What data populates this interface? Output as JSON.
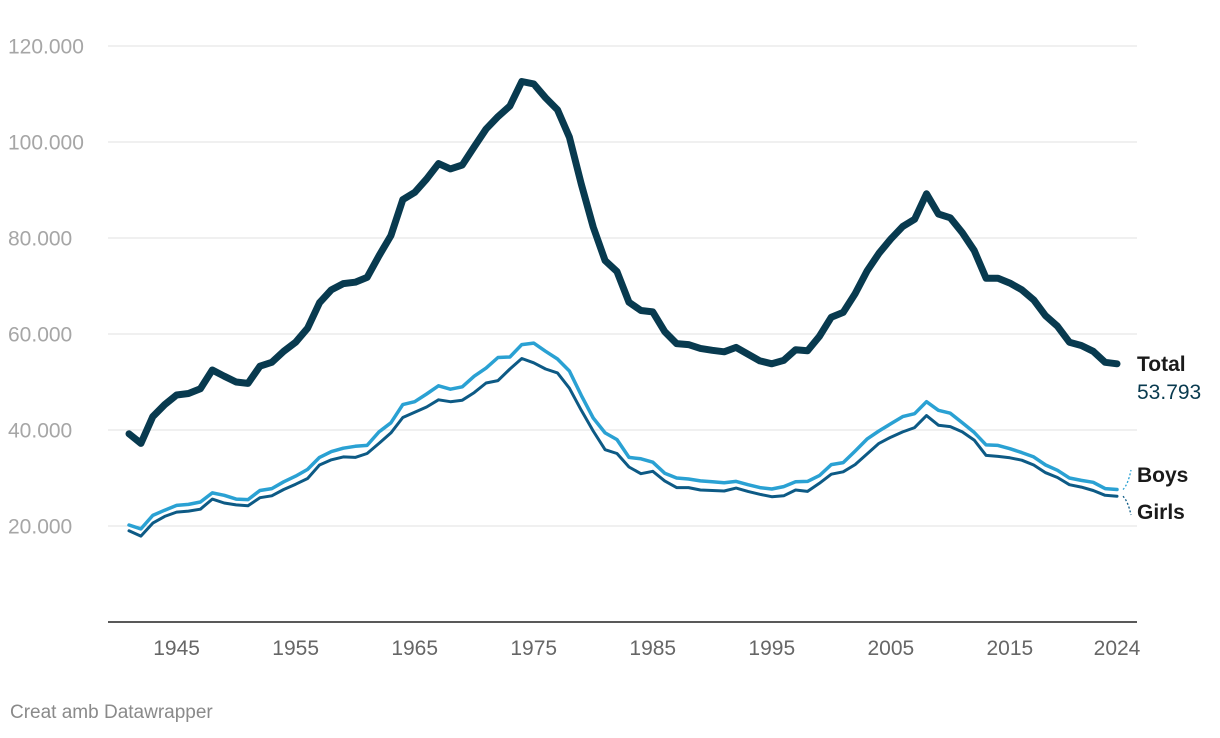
{
  "chart_data": {
    "type": "line",
    "ylim": [
      0,
      120000
    ],
    "xlim": [
      1941,
      2024
    ],
    "y_ticks": [
      {
        "value": 20000,
        "label": "20.000"
      },
      {
        "value": 40000,
        "label": "40.000"
      },
      {
        "value": 60000,
        "label": "60.000"
      },
      {
        "value": 80000,
        "label": "80.000"
      },
      {
        "value": 100000,
        "label": "100.000"
      },
      {
        "value": 120000,
        "label": "120.000"
      }
    ],
    "x_ticks": [
      {
        "value": 1945,
        "label": "1945"
      },
      {
        "value": 1955,
        "label": "1955"
      },
      {
        "value": 1965,
        "label": "1965"
      },
      {
        "value": 1975,
        "label": "1975"
      },
      {
        "value": 1985,
        "label": "1985"
      },
      {
        "value": 1995,
        "label": "1995"
      },
      {
        "value": 2005,
        "label": "2005"
      },
      {
        "value": 2015,
        "label": "2015"
      },
      {
        "value": 2024,
        "label": "2024"
      }
    ],
    "grid": true,
    "x": [
      1941,
      1942,
      1943,
      1944,
      1945,
      1946,
      1947,
      1948,
      1949,
      1950,
      1951,
      1952,
      1953,
      1954,
      1955,
      1956,
      1957,
      1958,
      1959,
      1960,
      1961,
      1962,
      1963,
      1964,
      1965,
      1966,
      1967,
      1968,
      1969,
      1970,
      1971,
      1972,
      1973,
      1974,
      1975,
      1976,
      1977,
      1978,
      1979,
      1980,
      1981,
      1982,
      1983,
      1984,
      1985,
      1986,
      1987,
      1988,
      1989,
      1990,
      1991,
      1992,
      1993,
      1994,
      1995,
      1996,
      1997,
      1998,
      1999,
      2000,
      2001,
      2002,
      2003,
      2004,
      2005,
      2006,
      2007,
      2008,
      2009,
      2010,
      2011,
      2012,
      2013,
      2014,
      2015,
      2016,
      2017,
      2018,
      2019,
      2020,
      2021,
      2022,
      2023,
      2024
    ],
    "series": [
      {
        "name": "Total",
        "color": "#083a4f",
        "end_value_label": "53.793",
        "values": [
          39200,
          37200,
          42800,
          45300,
          47300,
          47600,
          48600,
          52500,
          51200,
          50000,
          49700,
          53300,
          54100,
          56400,
          58300,
          61200,
          66500,
          69200,
          70500,
          70800,
          71800,
          76300,
          80500,
          88000,
          89500,
          92300,
          95500,
          94400,
          95200,
          99000,
          102700,
          105300,
          107500,
          112600,
          112100,
          109200,
          106700,
          101000,
          91200,
          82300,
          75300,
          73000,
          66600,
          64900,
          64600,
          60500,
          58000,
          57800,
          57000,
          56600,
          56300,
          57200,
          55800,
          54400,
          53800,
          54500,
          56700,
          56500,
          59500,
          63500,
          64500,
          68400,
          73100,
          76800,
          79800,
          82400,
          83900,
          89200,
          85000,
          84200,
          81100,
          77400,
          71600,
          71600,
          70600,
          69200,
          67100,
          63800,
          61600,
          58300,
          57600,
          56400,
          54100,
          53793
        ]
      },
      {
        "name": "Boys",
        "color": "#2aa1d3",
        "values": [
          20200,
          19400,
          22200,
          23300,
          24300,
          24500,
          25000,
          26900,
          26400,
          25600,
          25500,
          27400,
          27800,
          29200,
          30400,
          31800,
          34300,
          35500,
          36200,
          36600,
          36800,
          39600,
          41500,
          45300,
          45900,
          47500,
          49200,
          48500,
          49000,
          51200,
          52900,
          55100,
          55200,
          57800,
          58100,
          56400,
          54800,
          52300,
          47200,
          42500,
          39400,
          38000,
          34300,
          34000,
          33300,
          31000,
          30000,
          29800,
          29400,
          29200,
          29000,
          29300,
          28600,
          28000,
          27700,
          28200,
          29200,
          29300,
          30500,
          32800,
          33200,
          35600,
          38100,
          39800,
          41300,
          42800,
          43400,
          45900,
          44100,
          43500,
          41500,
          39500,
          36900,
          36800,
          36100,
          35300,
          34400,
          32700,
          31600,
          30000,
          29500,
          29100,
          27800,
          27600
        ]
      },
      {
        "name": "Girls",
        "color": "#0d5a85",
        "values": [
          19000,
          17900,
          20600,
          22000,
          22900,
          23100,
          23500,
          25600,
          24800,
          24400,
          24200,
          25900,
          26300,
          27600,
          28700,
          29900,
          32700,
          33800,
          34400,
          34300,
          35100,
          37200,
          39400,
          42600,
          43700,
          44800,
          46300,
          45900,
          46200,
          47800,
          49800,
          50300,
          52700,
          54900,
          54000,
          52700,
          51900,
          48700,
          44100,
          39800,
          35900,
          35100,
          32300,
          30900,
          31400,
          29400,
          28000,
          28000,
          27500,
          27400,
          27300,
          27900,
          27200,
          26600,
          26100,
          26300,
          27500,
          27200,
          28900,
          30800,
          31300,
          32800,
          35000,
          37200,
          38500,
          39600,
          40500,
          43000,
          41000,
          40700,
          39600,
          37900,
          34700,
          34500,
          34200,
          33700,
          32700,
          31100,
          30100,
          28600,
          28100,
          27400,
          26400,
          26200
        ]
      }
    ]
  },
  "credit": "Creat amb Datawrapper"
}
